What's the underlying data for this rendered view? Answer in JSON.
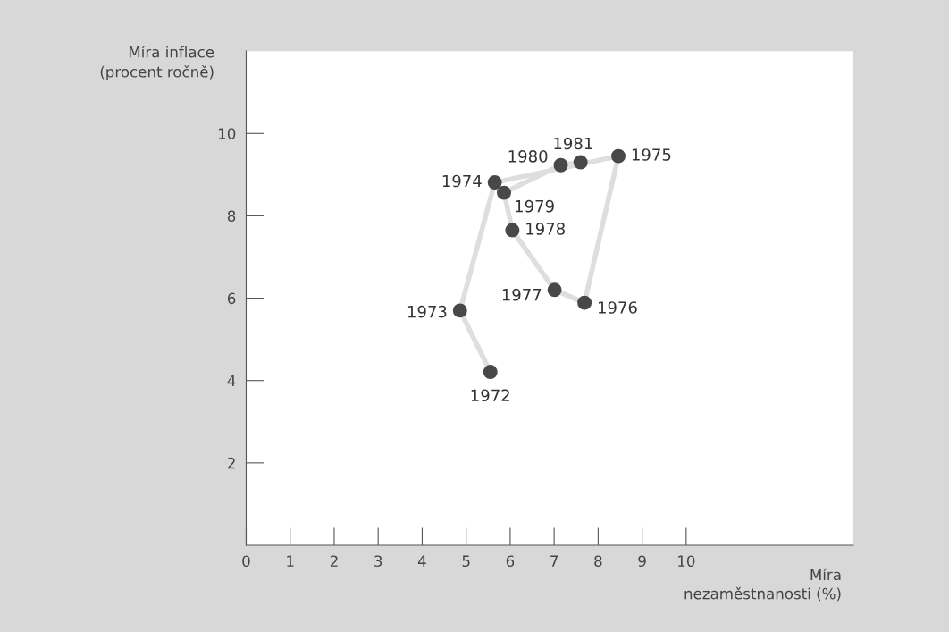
{
  "chart_data": {
    "type": "scatter",
    "ylabel": "Míra inflace\n(procent ročně)",
    "xlabel": "Míra\nnezaměstnanosti (%)",
    "xlim": [
      0,
      13.8
    ],
    "ylim": [
      0,
      12
    ],
    "xticks": [
      0,
      1,
      2,
      3,
      4,
      5,
      6,
      7,
      8,
      9,
      10
    ],
    "yticks": [
      2,
      4,
      6,
      8,
      10
    ],
    "grid": false,
    "legend": false,
    "series": [
      {
        "type": "line",
        "color": "#dedede",
        "x": [
          5.55,
          4.86,
          5.65,
          8.46,
          7.69,
          7.01,
          6.05,
          5.86,
          7.15,
          7.6
        ],
        "values": [
          4.21,
          5.7,
          8.81,
          9.45,
          5.89,
          6.2,
          7.65,
          8.56,
          9.23,
          9.3
        ]
      },
      {
        "color": "#484848",
        "marker": "circle",
        "x": [
          5.55,
          4.86,
          5.65,
          8.46,
          7.69,
          7.01,
          6.05,
          5.86,
          7.15,
          7.6
        ],
        "values": [
          4.21,
          5.7,
          8.81,
          9.45,
          5.89,
          6.2,
          7.65,
          8.56,
          9.23,
          9.3
        ]
      }
    ],
    "annotations": [
      {
        "text": "1972",
        "x": 5.55,
        "y": 4.21
      },
      {
        "text": "1973",
        "x": 4.86,
        "y": 5.7
      },
      {
        "text": "1974",
        "x": 5.65,
        "y": 8.81
      },
      {
        "text": "1975",
        "x": 8.46,
        "y": 9.45
      },
      {
        "text": "1976",
        "x": 7.69,
        "y": 5.89
      },
      {
        "text": "1977",
        "x": 7.01,
        "y": 6.2
      },
      {
        "text": "1978",
        "x": 6.05,
        "y": 7.65
      },
      {
        "text": "1979",
        "x": 5.86,
        "y": 8.56
      },
      {
        "text": "1980",
        "x": 7.15,
        "y": 9.23
      },
      {
        "text": "1981",
        "x": 7.6,
        "y": 9.3
      }
    ]
  }
}
